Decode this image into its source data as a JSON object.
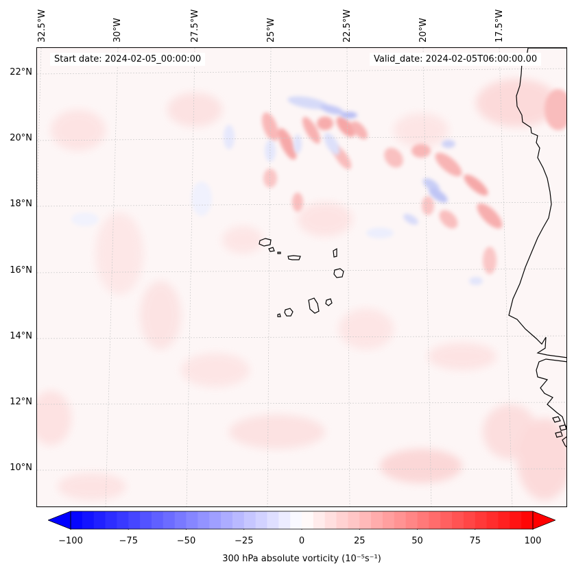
{
  "map": {
    "start_date": "Start date: 2024-02-05_00:00:00",
    "valid_date": "Valid_date: 2024-02-05T06:00:00.00",
    "lon_labels": [
      "32.5°W",
      "30°W",
      "27.5°W",
      "25°W",
      "22.5°W",
      "20°W",
      "17.5°W"
    ],
    "lat_labels": [
      "22°N",
      "20°N",
      "18°N",
      "16°N",
      "14°N",
      "12°N",
      "10°N"
    ],
    "gridlines": true,
    "region": "Cape Verde Islands and West African coast (Senegal / Guinea-Bissau)",
    "field": "300 hPa absolute vorticity"
  },
  "colorbar": {
    "ticks": [
      "−100",
      "−75",
      "−50",
      "−25",
      "0",
      "25",
      "50",
      "75",
      "100"
    ],
    "title": "300 hPa absolute vorticity (10⁻⁵s⁻¹)",
    "vmin": -100,
    "vmax": 100,
    "levels": 41,
    "extend": "both",
    "cmap_low": "#0000ff",
    "cmap_mid": "#ffffff",
    "cmap_high": "#ff0000"
  }
}
